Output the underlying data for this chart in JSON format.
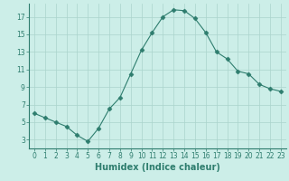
{
  "x": [
    0,
    1,
    2,
    3,
    4,
    5,
    6,
    7,
    8,
    9,
    10,
    11,
    12,
    13,
    14,
    15,
    16,
    17,
    18,
    19,
    20,
    21,
    22,
    23
  ],
  "y": [
    6.0,
    5.5,
    5.0,
    4.5,
    3.5,
    2.8,
    4.3,
    6.5,
    7.8,
    10.5,
    13.2,
    15.2,
    17.0,
    17.8,
    17.7,
    16.8,
    15.2,
    13.0,
    12.2,
    10.8,
    10.5,
    9.3,
    8.8,
    8.5
  ],
  "line_color": "#2e7d6e",
  "marker": "D",
  "marker_size": 2.5,
  "xlabel": "Humidex (Indice chaleur)",
  "xlim": [
    -0.5,
    23.5
  ],
  "ylim": [
    2.0,
    18.5
  ],
  "xticks": [
    0,
    1,
    2,
    3,
    4,
    5,
    6,
    7,
    8,
    9,
    10,
    11,
    12,
    13,
    14,
    15,
    16,
    17,
    18,
    19,
    20,
    21,
    22,
    23
  ],
  "yticks": [
    3,
    5,
    7,
    9,
    11,
    13,
    15,
    17
  ],
  "bg_color": "#cceee8",
  "grid_color": "#aad4cc",
  "tick_fontsize": 5.5,
  "xlabel_fontsize": 7
}
